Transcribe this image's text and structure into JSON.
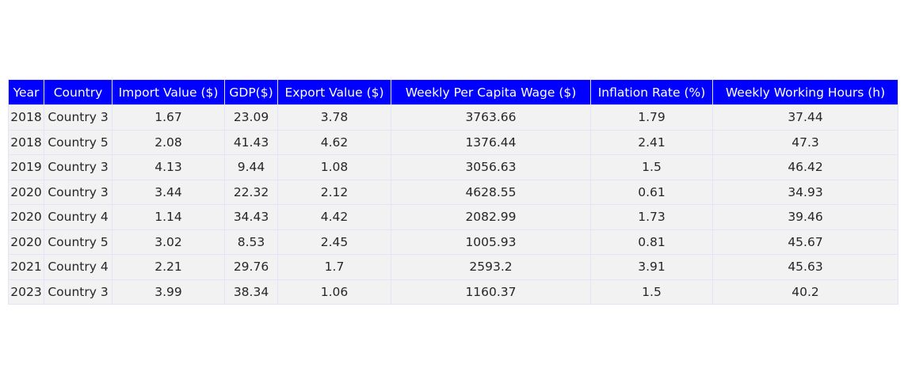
{
  "colors": {
    "header_background": "#0000ff",
    "header_text": "#ffffff",
    "cell_background": "#f2f2f2",
    "cell_text": "#262626",
    "grid_line": "#e4e4f6"
  },
  "chart_data": {
    "type": "table",
    "columns": [
      "Year",
      "Country",
      "Import Value ($)",
      "GDP($)",
      "Export Value ($)",
      "Weekly Per Capita Wage ($)",
      "Inflation Rate (%)",
      "Weekly Working Hours (h)"
    ],
    "rows": [
      [
        "2018",
        "Country 3",
        "1.67",
        "23.09",
        "3.78",
        "3763.66",
        "1.79",
        "37.44"
      ],
      [
        "2018",
        "Country 5",
        "2.08",
        "41.43",
        "4.62",
        "1376.44",
        "2.41",
        "47.3"
      ],
      [
        "2019",
        "Country 3",
        "4.13",
        "9.44",
        "1.08",
        "3056.63",
        "1.5",
        "46.42"
      ],
      [
        "2020",
        "Country 3",
        "3.44",
        "22.32",
        "2.12",
        "4628.55",
        "0.61",
        "34.93"
      ],
      [
        "2020",
        "Country 4",
        "1.14",
        "34.43",
        "4.42",
        "2082.99",
        "1.73",
        "39.46"
      ],
      [
        "2020",
        "Country 5",
        "3.02",
        "8.53",
        "2.45",
        "1005.93",
        "0.81",
        "45.67"
      ],
      [
        "2021",
        "Country 4",
        "2.21",
        "29.76",
        "1.7",
        "2593.2",
        "3.91",
        "45.63"
      ],
      [
        "2023",
        "Country 3",
        "3.99",
        "38.34",
        "1.06",
        "1160.37",
        "1.5",
        "40.2"
      ]
    ]
  }
}
